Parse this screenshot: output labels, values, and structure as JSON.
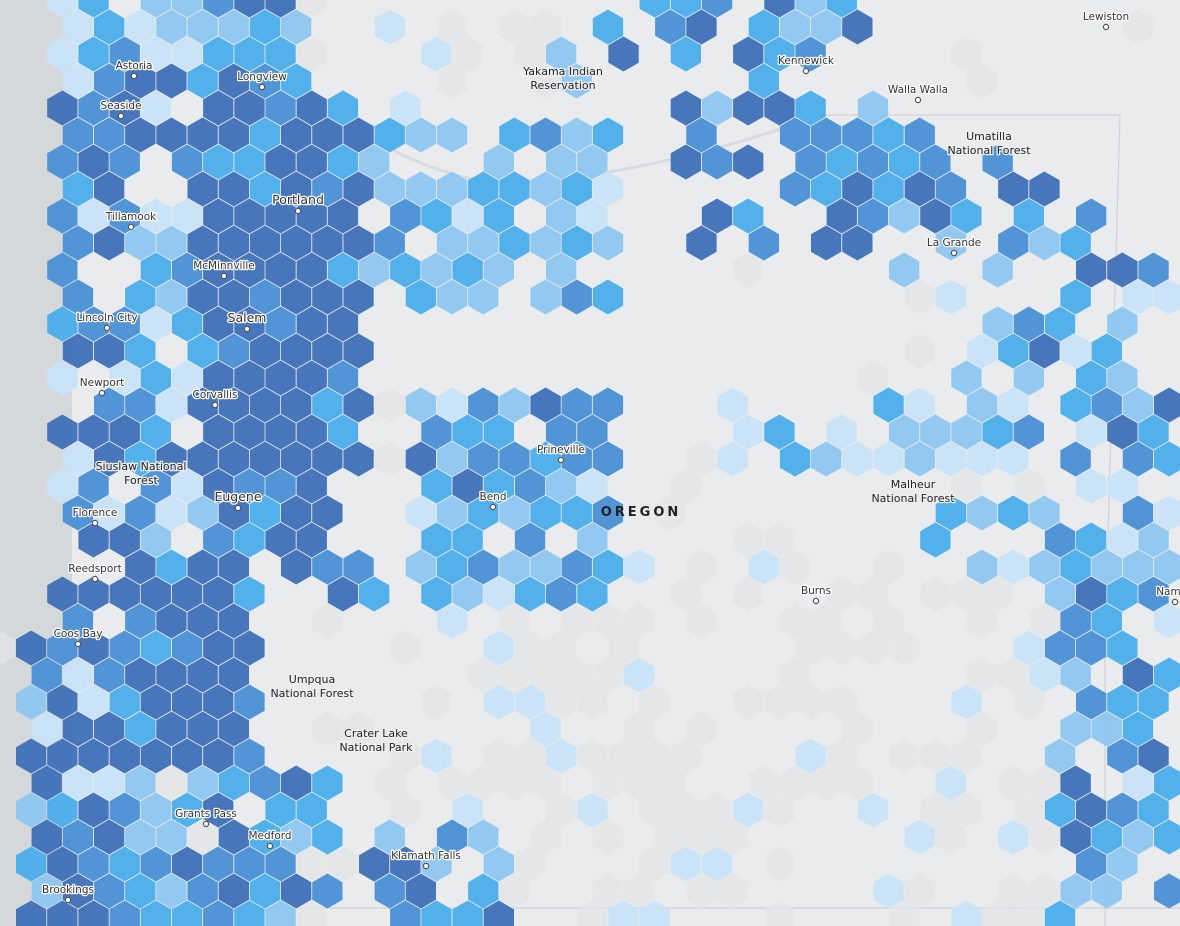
{
  "map": {
    "cities": [
      "Astoria",
      "Seaside",
      "Longview",
      "Tillamook",
      "Portland",
      "McMinnville",
      "Lincoln City",
      "Salem",
      "Newport",
      "Corvallis",
      "Florence",
      "Eugene",
      "Reedsport",
      "Coos Bay",
      "Grants Pass",
      "Medford",
      "Brookings",
      "Klamath Falls",
      "Prineville",
      "Bend",
      "Burns",
      "Kennewick",
      "Walla Walla",
      "La Grande",
      "Lewiston",
      "Nampa"
    ],
    "areas": [
      [
        "Yakama Indian",
        "Reservation"
      ],
      [
        "Umatilla",
        "National Forest"
      ],
      [
        "Siuslaw National",
        "Forest"
      ],
      [
        "Malheur",
        "National Forest"
      ],
      [
        "Umpqua",
        "National Forest"
      ],
      [
        "Crater Lake",
        "National Park"
      ]
    ],
    "state_label": "OREGON"
  }
}
